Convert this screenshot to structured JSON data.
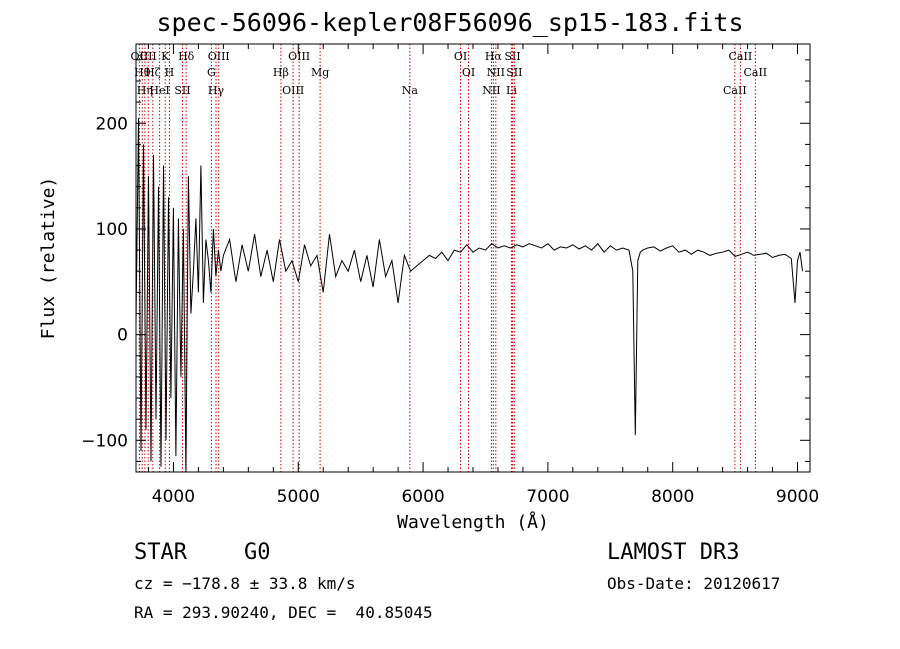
{
  "chart_data": {
    "type": "line",
    "title": "spec-56096-kepler08F56096_sp15-183.fits",
    "xlabel": "Wavelength (Å)",
    "ylabel": "Flux (relative)",
    "xlim": [
      3700,
      9100
    ],
    "ylim": [
      -130,
      275
    ],
    "xticks": [
      4000,
      5000,
      6000,
      7000,
      8000,
      9000
    ],
    "yticks": [
      -100,
      0,
      100,
      200
    ],
    "series": [
      {
        "name": "flux",
        "x": [
          3700,
          3720,
          3740,
          3760,
          3780,
          3800,
          3820,
          3840,
          3860,
          3880,
          3900,
          3920,
          3940,
          3960,
          3980,
          4000,
          4020,
          4040,
          4060,
          4080,
          4100,
          4120,
          4140,
          4160,
          4180,
          4200,
          4220,
          4240,
          4260,
          4280,
          4300,
          4320,
          4340,
          4360,
          4380,
          4400,
          4450,
          4500,
          4550,
          4600,
          4650,
          4700,
          4750,
          4800,
          4850,
          4900,
          4950,
          5000,
          5050,
          5100,
          5150,
          5200,
          5250,
          5300,
          5350,
          5400,
          5450,
          5500,
          5550,
          5600,
          5650,
          5700,
          5750,
          5800,
          5850,
          5900,
          5950,
          6000,
          6050,
          6100,
          6150,
          6200,
          6250,
          6300,
          6350,
          6400,
          6450,
          6500,
          6550,
          6600,
          6650,
          6700,
          6750,
          6800,
          6850,
          6900,
          6950,
          7000,
          7050,
          7100,
          7150,
          7200,
          7250,
          7300,
          7350,
          7400,
          7450,
          7500,
          7550,
          7600,
          7650,
          7680,
          7700,
          7720,
          7740,
          7760,
          7800,
          7850,
          7900,
          7950,
          8000,
          8050,
          8100,
          8150,
          8200,
          8250,
          8300,
          8350,
          8400,
          8450,
          8500,
          8550,
          8600,
          8650,
          8700,
          8750,
          8800,
          8850,
          8900,
          8950,
          8980,
          9000,
          9020,
          9040
        ],
        "y": [
          10,
          205,
          -110,
          180,
          -90,
          150,
          -120,
          170,
          -80,
          140,
          -125,
          160,
          -100,
          130,
          -60,
          120,
          -115,
          110,
          -40,
          100,
          -130,
          150,
          20,
          60,
          110,
          40,
          160,
          30,
          90,
          70,
          40,
          100,
          55,
          80,
          60,
          75,
          90,
          50,
          85,
          60,
          95,
          55,
          80,
          50,
          90,
          60,
          70,
          50,
          85,
          65,
          75,
          40,
          95,
          55,
          70,
          60,
          80,
          50,
          75,
          45,
          90,
          55,
          70,
          30,
          75,
          60,
          65,
          70,
          75,
          72,
          78,
          70,
          80,
          78,
          85,
          78,
          82,
          80,
          86,
          82,
          84,
          82,
          85,
          83,
          86,
          84,
          82,
          86,
          80,
          83,
          82,
          85,
          81,
          84,
          80,
          86,
          78,
          84,
          80,
          82,
          80,
          60,
          -95,
          70,
          78,
          80,
          82,
          83,
          79,
          82,
          84,
          78,
          80,
          76,
          80,
          78,
          75,
          77,
          78,
          80,
          74,
          76,
          78,
          75,
          76,
          77,
          73,
          75,
          76,
          72,
          30,
          70,
          78,
          60
        ]
      }
    ],
    "lines": [
      {
        "label": "O II",
        "x": 3727
      },
      {
        "label": "H θ",
        "x": 3750
      },
      {
        "label": "H η",
        "x": 3771
      },
      {
        "label": "C II",
        "x": 3798
      },
      {
        "label": "H ζ",
        "x": 3835
      },
      {
        "label": "He I",
        "x": 3889
      },
      {
        "label": "K",
        "x": 3934
      },
      {
        "label": "H",
        "x": 3968
      },
      {
        "label": "S II",
        "x": 4072
      },
      {
        "label": "H δ",
        "x": 4102
      },
      {
        "label": "G",
        "x": 4304
      },
      {
        "label": "H γ",
        "x": 4341
      },
      {
        "label": "O III",
        "x": 4363
      },
      {
        "label": "H β",
        "x": 4861
      },
      {
        "label": "O III",
        "x": 4959
      },
      {
        "label": "O III",
        "x": 5007
      },
      {
        "label": "Mg",
        "x": 5175
      },
      {
        "label": "Na",
        "x": 5894
      },
      {
        "label": "O I",
        "x": 6300
      },
      {
        "label": "O I",
        "x": 6364
      },
      {
        "label": "N II",
        "x": 6548
      },
      {
        "label": "H α",
        "x": 6563
      },
      {
        "label": "N II",
        "x": 6583
      },
      {
        "label": "Li",
        "x": 6708
      },
      {
        "label": "S II",
        "x": 6717
      },
      {
        "label": "S II",
        "x": 6731
      },
      {
        "label": "Ca II",
        "x": 8498
      },
      {
        "label": "Ca II",
        "x": 8542
      },
      {
        "label": "Ca II",
        "x": 8662
      }
    ]
  },
  "info": {
    "class": "STAR",
    "subclass": "G0",
    "survey": "LAMOST DR3",
    "cz": "cz = −178.8 ± 33.8 km/s",
    "obs_date": "Obs-Date: 20120617",
    "radec": "RA = 293.90240, DEC =  40.85045"
  },
  "colors": {
    "line": "#000000",
    "marker": "#cc0000",
    "axis": "#000000"
  }
}
